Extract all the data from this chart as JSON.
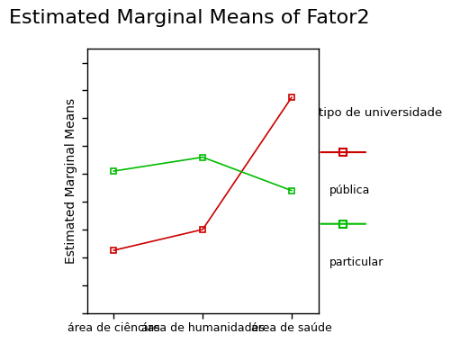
{
  "title": "Estimated Marginal Means of Fator2",
  "ylabel": "Estimated Marginal Means",
  "x_labels": [
    "área de ciências",
    "área de humanidades",
    "área de saúde"
  ],
  "publica_values": [
    3.05,
    3.2,
    4.15
  ],
  "particular_values": [
    3.62,
    3.72,
    3.48
  ],
  "publica_color": "#cc0000",
  "particular_color": "#00bb00",
  "legend_title": "tipo de universidade",
  "legend_labels": [
    "pública",
    "particular"
  ],
  "title_fontsize": 16,
  "ylabel_fontsize": 10,
  "tick_fontsize": 9,
  "background_color": "#ffffff",
  "ylim_min": 2.6,
  "ylim_max": 4.5
}
